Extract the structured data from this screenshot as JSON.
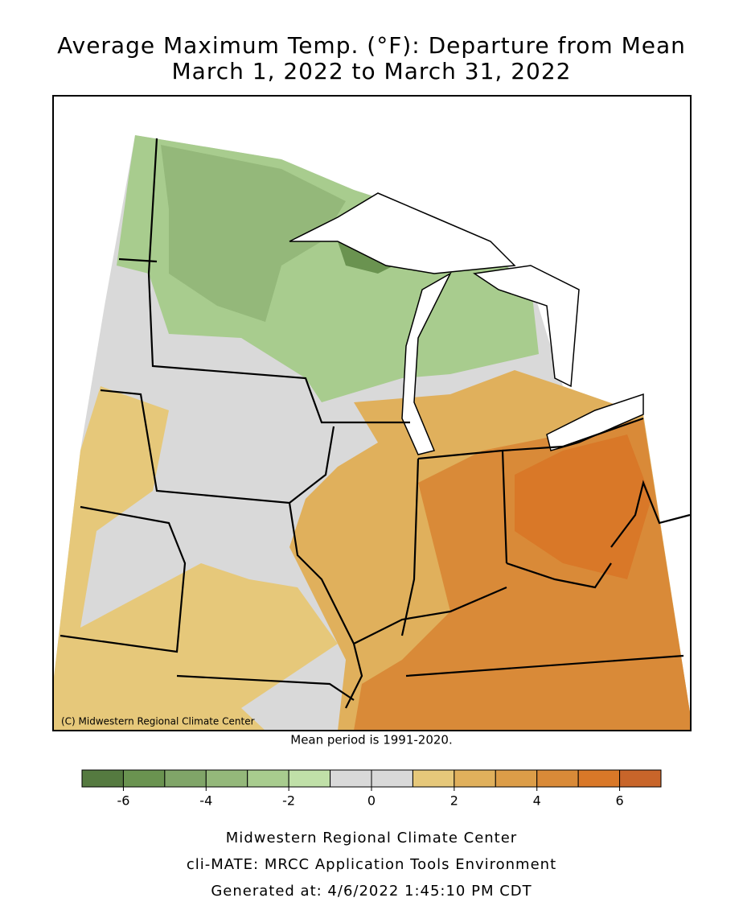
{
  "title_lines": [
    "Average Maximum Temp. (°F): Departure from Mean",
    "March 1, 2022 to March 31, 2022"
  ],
  "copyright": "(C) Midwestern Regional Climate Center",
  "note": "Mean period is 1991-2020.",
  "colorbar": {
    "bounds": [
      -7,
      -6,
      -5,
      -4,
      -3,
      -2,
      -1,
      0,
      1,
      2,
      3,
      4,
      5,
      6,
      7
    ],
    "colors": [
      "#557a40",
      "#6a9350",
      "#80a568",
      "#94b87a",
      "#a8cc8e",
      "#c0e0a8",
      "#d9d9d9",
      "#d9d9d9",
      "#e6c87a",
      "#e0b05c",
      "#dc9d48",
      "#d98a38",
      "#d97828",
      "#c8652a"
    ],
    "ticks": [
      -6,
      -4,
      -2,
      0,
      2,
      4,
      6
    ]
  },
  "footer_lines": [
    "Midwestern Regional Climate Center",
    "cli-MATE: MRCC Application Tools Environment",
    "Generated at: 4/6/2022 1:45:10 PM CDT"
  ]
}
